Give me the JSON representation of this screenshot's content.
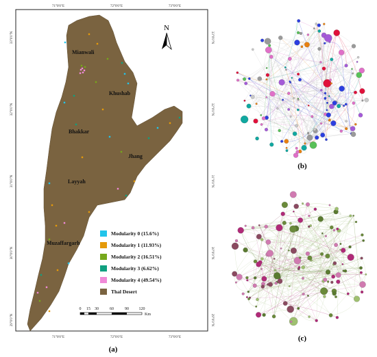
{
  "map": {
    "coord_top": [
      "71°0'0\"E",
      "72°0'0\"E",
      "73°0'0\"E"
    ],
    "coord_bottom": [
      "71°0'0\"E",
      "72°0'0\"E",
      "73°0'0\"E"
    ],
    "coord_left": [
      "33°0'0\"N",
      "32°0'0\"N",
      "31°0'0\"N",
      "30°0'0\"N",
      "29°0'0\"N"
    ],
    "coord_right": [
      "33°0'0\"N",
      "32°0'0\"N",
      "31°0'0\"N",
      "30°0'0\"N",
      "29°0'0\"N"
    ],
    "north": "N",
    "cities": [
      {
        "name": "Mianwali"
      },
      {
        "name": "Khushab"
      },
      {
        "name": "Bhakkar"
      },
      {
        "name": "Jhang"
      },
      {
        "name": "Layyah"
      },
      {
        "name": "Muzaffargarh"
      }
    ],
    "legend": [
      {
        "label": "Modularity 0 (15.6%)",
        "color": "#22c4ea"
      },
      {
        "label": "Modularity 1 (11.93%)",
        "color": "#e59a0a"
      },
      {
        "label": "Modularity 2 (16.51%)",
        "color": "#76a81c"
      },
      {
        "label": "Modularity 3 (6.62%)",
        "color": "#10a080"
      },
      {
        "label": "Modularity 4 (49.54%)",
        "color": "#f08ad8"
      },
      {
        "label": "Thal Desert",
        "color": "#7a6340"
      }
    ],
    "scale_labels": [
      "0",
      "15",
      "30",
      "60",
      "90",
      "120"
    ],
    "scale_unit": "Km"
  },
  "panels": {
    "a": "(a)",
    "b": "(b)",
    "c": "(c)"
  },
  "colors": {
    "desert": "#7a6340",
    "border": "#222222",
    "edge_b": "#c9c9c9",
    "edge_c": "#b9cfa0"
  },
  "network_b_palette": [
    "#9a9a9a",
    "#c9c9c9",
    "#e0103a",
    "#2b3ee0",
    "#e88010",
    "#a45ad8",
    "#10a8a0",
    "#58c058",
    "#e070c8"
  ],
  "network_c_palette": [
    "#6a8a3a",
    "#9fc070",
    "#b02a78",
    "#d07ab0",
    "#8a4a60",
    "#5a7a30"
  ]
}
